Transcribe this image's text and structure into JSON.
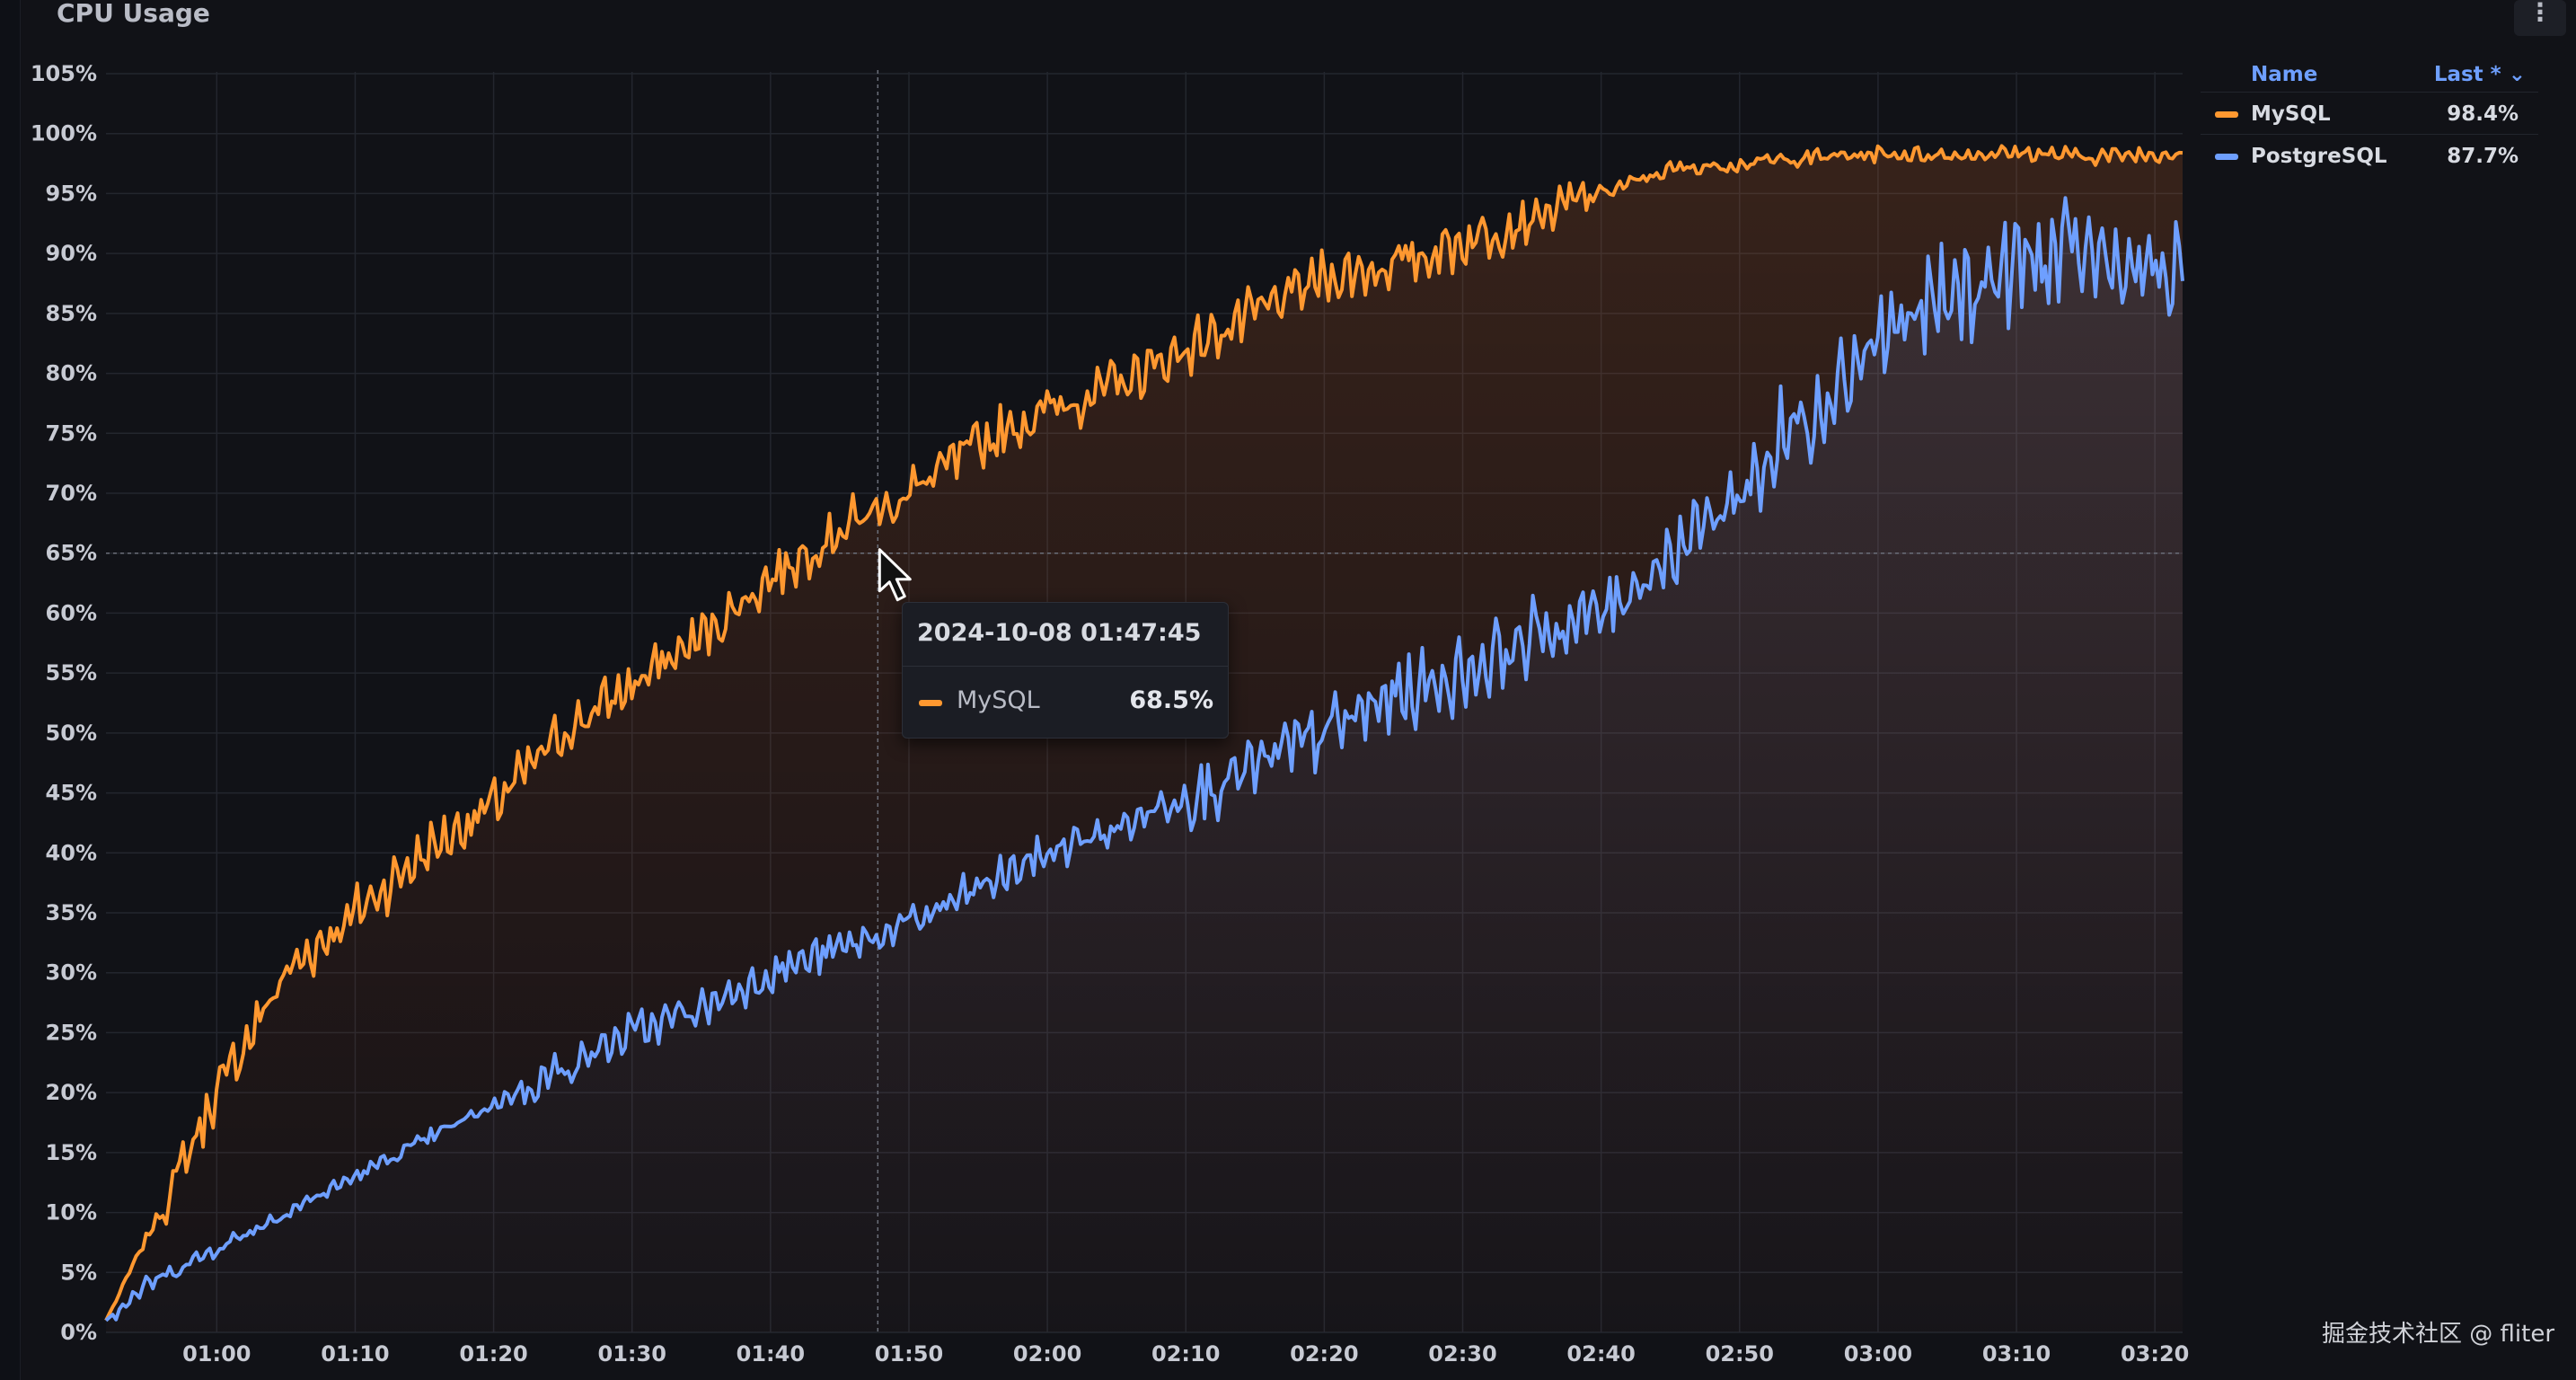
{
  "panel": {
    "title": "CPU Usage",
    "menu_icon": "kebab-menu-icon",
    "menu_glyph": "⋮"
  },
  "legend": {
    "header_name": "Name",
    "header_last": "Last * ⌄",
    "items": [
      {
        "name": "MySQL",
        "value": "98.4%",
        "color": "#ff9830"
      },
      {
        "name": "PostgreSQL",
        "value": "87.7%",
        "color": "#6e9fff"
      }
    ]
  },
  "tooltip": {
    "time": "2024-10-08 01:47:45",
    "series": "MySQL",
    "value": "68.5%",
    "color": "#ff9830"
  },
  "watermark": "掘金技术社区 @ fliter",
  "chart_data": {
    "type": "line",
    "title": "CPU Usage",
    "x_unit": "time (HH:MM)",
    "x_range": [
      "00:52:00",
      "03:22:00"
    ],
    "y_range": [
      0,
      105
    ],
    "y_ticks": [
      "0%",
      "5%",
      "10%",
      "15%",
      "20%",
      "25%",
      "30%",
      "35%",
      "40%",
      "45%",
      "50%",
      "55%",
      "60%",
      "65%",
      "70%",
      "75%",
      "80%",
      "85%",
      "90%",
      "95%",
      "100%",
      "105%"
    ],
    "x_ticks": [
      "01:00",
      "01:10",
      "01:20",
      "01:30",
      "01:40",
      "01:50",
      "02:00",
      "02:10",
      "02:20",
      "02:30",
      "02:40",
      "02:50",
      "03:00",
      "03:10",
      "03:20"
    ],
    "hover_time": "01:47:45",
    "hover_y": 65,
    "series": [
      {
        "name": "MySQL",
        "color": "#ff9830",
        "x": [
          "00:52",
          "00:55",
          "01:00",
          "01:05",
          "01:10",
          "01:15",
          "01:20",
          "01:25",
          "01:30",
          "01:35",
          "01:40",
          "01:45",
          "01:50",
          "01:55",
          "02:00",
          "02:05",
          "02:10",
          "02:15",
          "02:20",
          "02:25",
          "02:30",
          "02:35",
          "02:40",
          "02:45",
          "02:50",
          "02:55",
          "03:00",
          "03:05",
          "03:10",
          "03:15",
          "03:20",
          "03:22"
        ],
        "y": [
          1,
          8,
          20,
          30,
          35,
          40,
          44,
          50,
          54,
          58,
          63,
          67,
          70,
          74,
          77,
          79,
          82,
          85,
          88,
          89,
          91,
          93,
          95,
          97,
          97.5,
          98,
          98.3,
          98.2,
          98.4,
          98.1,
          98.3,
          98.4
        ]
      },
      {
        "name": "PostgreSQL",
        "color": "#6e9fff",
        "x": [
          "00:52",
          "00:55",
          "01:00",
          "01:05",
          "01:10",
          "01:15",
          "01:20",
          "01:25",
          "01:30",
          "01:35",
          "01:40",
          "01:45",
          "01:50",
          "01:55",
          "02:00",
          "02:05",
          "02:10",
          "02:15",
          "02:20",
          "02:25",
          "02:30",
          "02:35",
          "02:40",
          "02:45",
          "02:50",
          "02:55",
          "03:00",
          "03:05",
          "03:10",
          "03:15",
          "03:20",
          "03:22"
        ],
        "y": [
          1,
          4,
          7,
          10,
          13,
          16,
          19,
          22,
          25,
          27,
          30,
          32,
          34,
          37,
          40,
          42,
          45,
          47,
          50,
          53,
          55,
          58,
          60,
          65,
          70,
          77,
          83,
          86,
          89,
          90,
          88,
          87.7
        ]
      }
    ]
  }
}
